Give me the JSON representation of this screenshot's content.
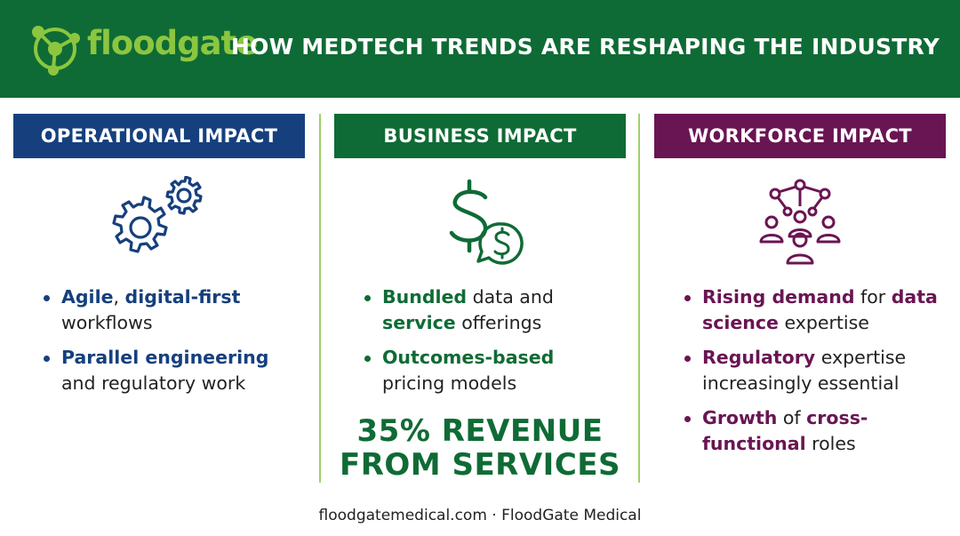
{
  "header": {
    "logo_text": "floodgate",
    "title": "HOW MEDTECH TRENDS ARE RESHAPING THE INDUSTRY"
  },
  "colors": {
    "brand_green": "#0f6b35",
    "logo_lime": "#8cc63f",
    "operational_blue": "#16407d",
    "workforce_purple": "#6a1553",
    "divider_green": "#9fd26a"
  },
  "columns": [
    {
      "banner": "OPERATIONAL IMPACT",
      "icon": "gears-icon",
      "bullets": [
        [
          {
            "t": "Agile",
            "b": true
          },
          {
            "t": ", ",
            "b": false
          },
          {
            "t": "digital-first",
            "b": true
          },
          {
            "t": " workflows",
            "b": false
          }
        ],
        [
          {
            "t": "Parallel engineering",
            "b": true
          },
          {
            "t": " and regulatory work",
            "b": false
          }
        ]
      ]
    },
    {
      "banner": "BUSINESS IMPACT",
      "icon": "dollar-icon",
      "bullets": [
        [
          {
            "t": "Bundled",
            "b": true
          },
          {
            "t": " data and ",
            "b": false
          },
          {
            "t": "service",
            "b": true
          },
          {
            "t": " offerings",
            "b": false
          }
        ],
        [
          {
            "t": "Outcomes-based",
            "b": true
          },
          {
            "t": " pricing models",
            "b": false
          }
        ]
      ],
      "stat": "35% REVENUE FROM SERVICES"
    },
    {
      "banner": "WORKFORCE IMPACT",
      "icon": "team-network-icon",
      "bullets": [
        [
          {
            "t": "Rising demand",
            "b": true
          },
          {
            "t": " for ",
            "b": false
          },
          {
            "t": "data science",
            "b": true
          },
          {
            "t": " expertise",
            "b": false
          }
        ],
        [
          {
            "t": "Regulatory",
            "b": true
          },
          {
            "t": " expertise increasingly essential",
            "b": false
          }
        ],
        [
          {
            "t": "Growth",
            "b": true
          },
          {
            "t": " of ",
            "b": false
          },
          {
            "t": "cross-functional",
            "b": true
          },
          {
            "t": " roles",
            "b": false
          }
        ]
      ]
    }
  ],
  "footer": "floodgatemedical.com · FloodGate Medical"
}
